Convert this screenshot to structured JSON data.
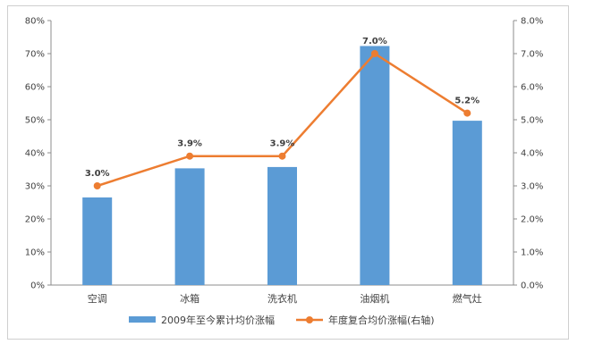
{
  "chart_data": {
    "type": "bar+line",
    "categories": [
      "空调",
      "冰箱",
      "洗衣机",
      "油烟机",
      "燃气灶"
    ],
    "series": [
      {
        "name": "2009年至今累计均价涨幅",
        "type": "bar",
        "axis": "left",
        "values": [
          26.5,
          35.3,
          35.7,
          72.3,
          49.7
        ],
        "color": "#5b9bd5"
      },
      {
        "name": "年度复合均价涨幅(右轴)",
        "type": "line",
        "axis": "right",
        "values": [
          3.0,
          3.9,
          3.9,
          7.0,
          5.2
        ],
        "data_labels": [
          "3.0%",
          "3.9%",
          "3.9%",
          "7.0%",
          "5.2%"
        ],
        "color": "#ed7d31"
      }
    ],
    "y_left": {
      "min": 0,
      "max": 80,
      "step": 10,
      "tick_labels": [
        "0%",
        "10%",
        "20%",
        "30%",
        "40%",
        "50%",
        "60%",
        "70%",
        "80%"
      ]
    },
    "y_right": {
      "min": 0,
      "max": 8,
      "step": 1,
      "tick_labels": [
        "0.0%",
        "1.0%",
        "2.0%",
        "3.0%",
        "4.0%",
        "5.0%",
        "6.0%",
        "7.0%",
        "8.0%"
      ]
    },
    "grid": false,
    "legend_position": "bottom"
  }
}
